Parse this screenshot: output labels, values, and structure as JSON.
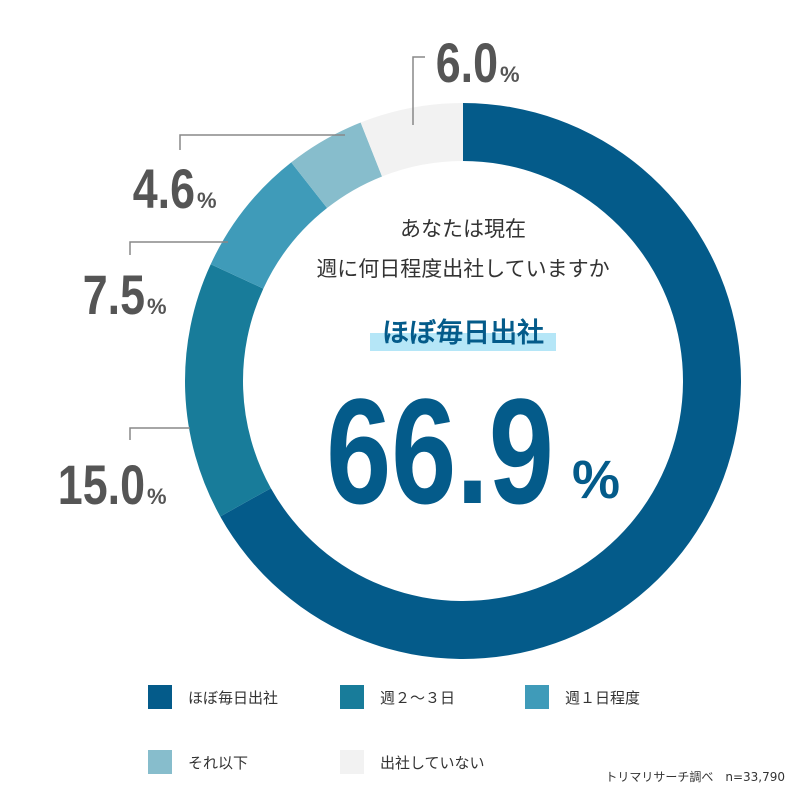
{
  "chart_data": {
    "type": "donut",
    "question": [
      "あなたは現在",
      "週に何日程度出社していますか"
    ],
    "categories": [
      "ほぼ毎日出社",
      "週２～３日",
      "週１日程度",
      "それ以下",
      "出社していない"
    ],
    "values": [
      66.9,
      15.0,
      7.5,
      4.6,
      6.0
    ],
    "value_labels": [
      "66.9",
      "15.0",
      "7.5",
      "4.6",
      "6.0"
    ],
    "value_suffix": "%",
    "colors": [
      "#045b8a",
      "#187c9a",
      "#3f9bb9",
      "#87bdcc",
      "#f2f2f2"
    ],
    "source": "トリマリサーチ調べ　n=33,790"
  }
}
